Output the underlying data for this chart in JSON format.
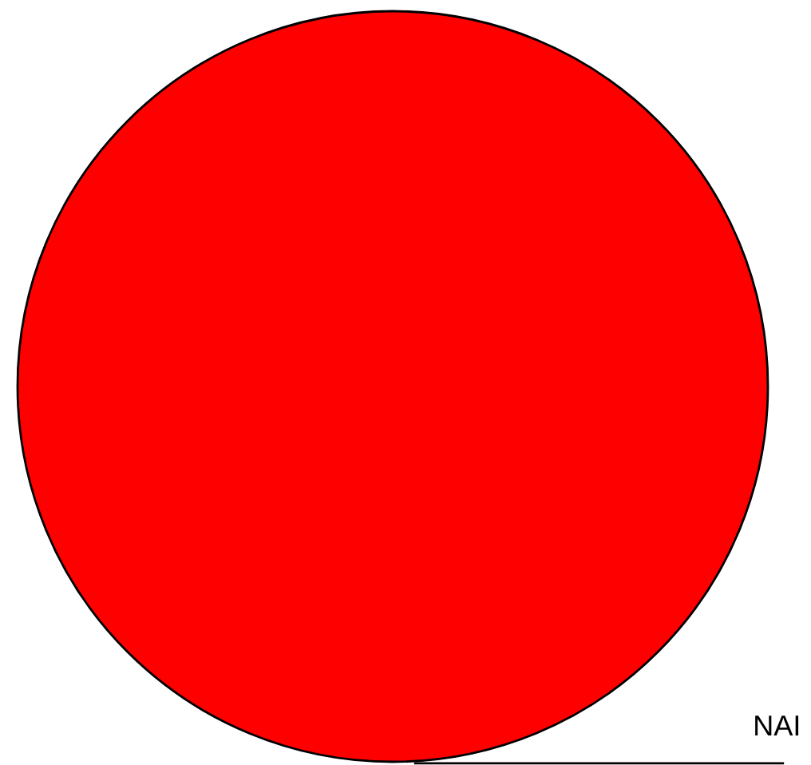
{
  "chart_data": {
    "type": "pie",
    "categories": [
      "NAI"
    ],
    "values": [
      100
    ],
    "colors": [
      "#ff0000"
    ]
  }
}
